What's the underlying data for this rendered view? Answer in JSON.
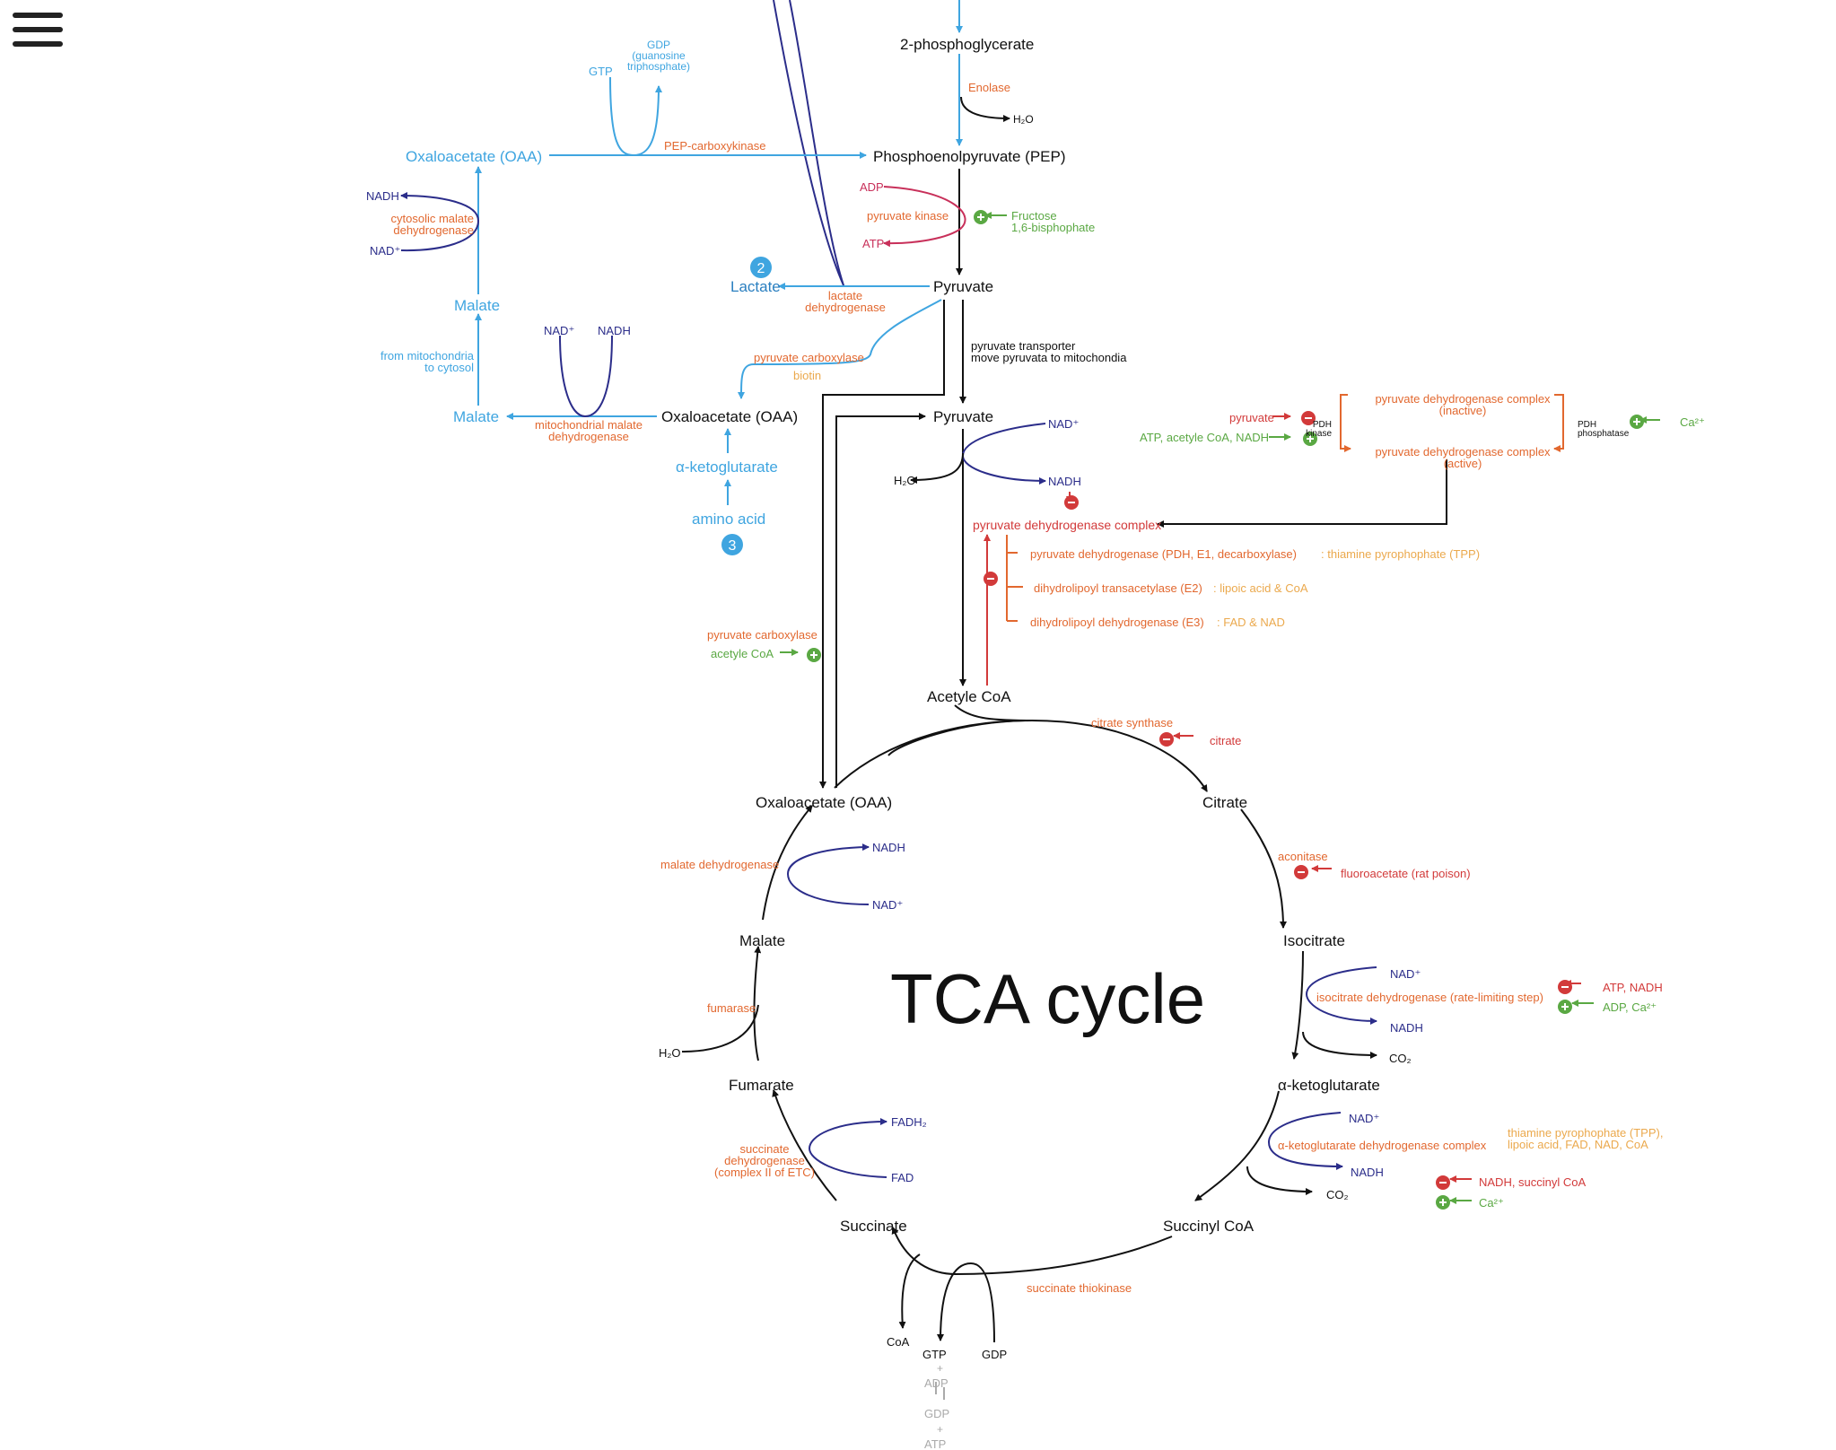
{
  "colors": {
    "black": "#111111",
    "blue": "#3fa5e0",
    "navy": "#2b2d8a",
    "orange": "#e2682f",
    "red": "#d23a3a",
    "crimson": "#c8305a",
    "green": "#5aa843",
    "yellow": "#eba94d",
    "gray": "#aaaaaa"
  },
  "menu": {
    "icon": "hamburger-menu-icon"
  },
  "gluconeo": {
    "two_pg": "2-phosphoglycerate",
    "enolase": "Enolase",
    "h2o_enolase": "H₂O",
    "pep": "Phosphoenolpyruvate (PEP)",
    "oaa_cyto": "Oxaloacetate (OAA)",
    "pepck": "PEP-carboxykinase",
    "gtp": "GTP",
    "gdp": "GDP\n(guanosine\ntriphosphate)",
    "adp": "ADP",
    "atp": "ATP",
    "pyruvate_kinase": "pyruvate kinase",
    "fructose": "Fructose\n1,6-bisphophate",
    "pyruvate": "Pyruvate",
    "lactate": "Lactate",
    "badge2": "2",
    "ldh": "lactate\ndehydrogenase",
    "nadh_cyto": "NADH",
    "nad_cyto": "NAD⁺",
    "cyto_mdh": "cytosolic malate\ndehydrogenase",
    "malate_cyto": "Malate",
    "from_mito": "from mitochondria\nto cytosol",
    "malate_mito": "Malate",
    "nad_mito": "NAD⁺",
    "nadh_mito": "NADH",
    "mito_mdh": "mitochondrial malate\ndehydrogenase",
    "oaa_mito": "Oxaloacetate (OAA)",
    "pc": "pyruvate carboxylase",
    "biotin": "biotin",
    "akg_upper": "α-ketoglutarate",
    "amino_acid": "amino acid",
    "badge3": "3",
    "transporter": "pyruvate transporter\nmove pyruvata to mitochondia",
    "pyruvate_mito": "Pyruvate",
    "nad_pdh": "NAD⁺",
    "h2o_pdh": "H₂O",
    "nadh_pdh": "NADH",
    "pdh_complex": "pyruvate dehydrogenase complex",
    "e1": "pyruvate dehydrogenase (PDH, E1, decarboxylase)",
    "e1_cof": ": thiamine pyrophophate (TPP)",
    "e2": "dihydrolipoyl transacetylase (E2)",
    "e2_cof": ": lipoic acid & CoA",
    "e3": "dihydrolipoyl dehydrogenase (E3)",
    "e3_cof": ": FAD & NAD",
    "pc_lower": "pyruvate carboxylase",
    "acetylcoa_act": "acetyle CoA",
    "acetyl_coa": "Acetyle CoA"
  },
  "pdh_regulation": {
    "pyruvate": "pyruvate",
    "atp_etc": "ATP, acetyle CoA, NADH",
    "pdh_kinase": "PDH\nkinase",
    "inactive": "pyruvate dehydrogenase complex\n(inactive)",
    "active": "pyruvate dehydrogenase complex\n(active)",
    "pdh_phosphatase": "PDH\nphosphatase",
    "ca": "Ca²⁺"
  },
  "tca": {
    "title": "TCA cycle",
    "citrate_synthase": "citrate synthase",
    "citrate_inh": "citrate",
    "oaa": "Oxaloacetate (OAA)",
    "citrate": "Citrate",
    "aconitase": "aconitase",
    "fluoroacetate": "fluoroacetate (rat poison)",
    "isocitrate": "Isocitrate",
    "nad_icdh": "NAD⁺",
    "icdh": "isocitrate dehydrogenase (rate-limiting step)",
    "nadh_icdh": "NADH",
    "co2_icdh": "CO₂",
    "atp_nadh": "ATP, NADH",
    "adp_ca": "ADP, Ca²⁺",
    "akg": "α-ketoglutarate",
    "nad_akgdh": "NAD⁺",
    "akgdh": "α-ketoglutarate dehydrogenase complex",
    "nadh_akgdh": "NADH",
    "co2_akgdh": "CO₂",
    "akgdh_cof": "thiamine pyrophophate (TPP),\nlipoic acid, FAD, NAD, CoA",
    "nadh_succ": "NADH, succinyl CoA",
    "ca_akgdh": "Ca²⁺",
    "succinyl_coa": "Succinyl CoA",
    "succ_thiokinase": "succinate thiokinase",
    "succinate": "Succinate",
    "coa": "CoA",
    "gtp": "GTP",
    "gdp": "GDP",
    "adp": "ADP",
    "gdp2": "GDP",
    "atp": "ATP",
    "plus": "+",
    "sdh": "succinate\ndehydrogenase\n(complex II of ETC)",
    "fadh2": "FADH₂",
    "fad": "FAD",
    "fumarate": "Fumarate",
    "fumarase": "fumarase",
    "h2o_fum": "H₂O",
    "malate": "Malate",
    "mdh": "malate dehydrogenase",
    "nadh_mdh": "NADH",
    "nad_mdh": "NAD⁺"
  }
}
